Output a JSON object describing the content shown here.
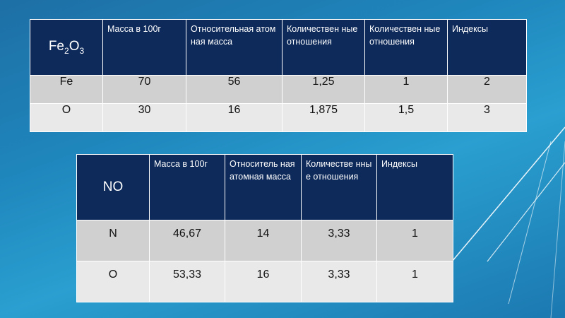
{
  "table1": {
    "formula": {
      "base1": "Fe",
      "sub1": "2",
      "base2": "O",
      "sub2": "3"
    },
    "columns": [
      "Масса в 100г",
      "Относительная атомная масса",
      "Количествен ные отношения",
      "Количествен ные отношения",
      "Индексы"
    ],
    "rows": [
      [
        "Fe",
        "70",
        "56",
        "1,25",
        "1",
        "2"
      ],
      [
        "O",
        "30",
        "16",
        "1,875",
        "1,5",
        "3"
      ]
    ]
  },
  "table2": {
    "formula": "NO",
    "columns": [
      "Масса в 100г",
      "Относитель ная атомная масса",
      "Количестве нные отношения",
      "Индексы"
    ],
    "rows": [
      [
        "N",
        "46,67",
        "14",
        "3,33",
        "1"
      ],
      [
        "O",
        "53,33",
        "16",
        "3,33",
        "1"
      ]
    ]
  },
  "colors": {
    "header_bg": "#0e2a5a",
    "row_bg": "#d0d0d0",
    "row_alt_bg": "#e9e9e9",
    "background": "#1f87bd"
  }
}
